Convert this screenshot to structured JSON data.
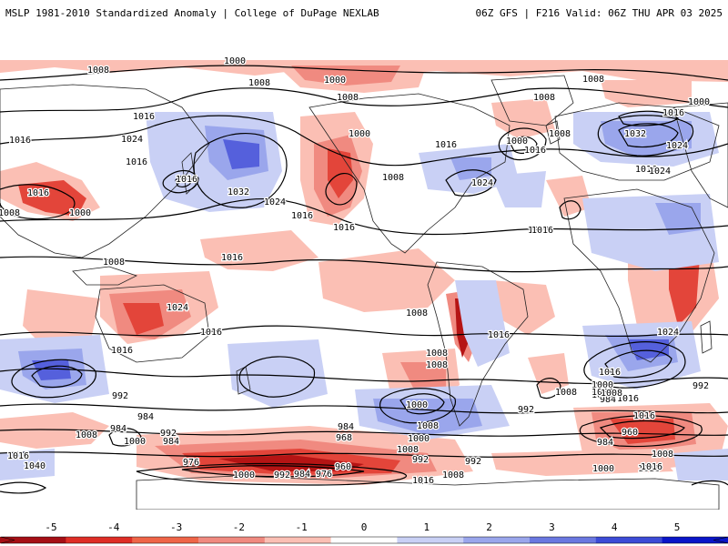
{
  "header": {
    "title_left": "MSLP 1981-2010 Standardized Anomaly | College of DuPage NEXLAB",
    "title_right": "06Z GFS | F216 Valid: 06Z THU APR 03 2025"
  },
  "legend": {
    "ticks": [
      "-5",
      "-4",
      "-3",
      "-2",
      "-1",
      "0",
      "1",
      "2",
      "3",
      "4",
      "5"
    ],
    "colors": [
      "#a50f15",
      "#de2d26",
      "#ef6548",
      "#f08a80",
      "#fbbfb4",
      "#ffffff",
      "#c9d0f5",
      "#9aa6ec",
      "#6a78e0",
      "#3c4bd6",
      "#0a15c8"
    ]
  },
  "map": {
    "colors": {
      "neg1": "#fbbfb4",
      "neg2": "#f08a80",
      "neg3": "#e3453a",
      "neg4": "#b51414",
      "pos1": "#c9d0f5",
      "pos2": "#9aa6ec",
      "pos3": "#5560dc",
      "land_outline": "#222222",
      "isobar": "#000000"
    },
    "isobar_labels": [
      "1000",
      "1000",
      "1008",
      "1008",
      "1008",
      "1008",
      "1008",
      "1000",
      "1016",
      "1016",
      "1024",
      "1016",
      "1032",
      "1024",
      "1016",
      "1016",
      "1016",
      "1000",
      "1008",
      "1016",
      "1000",
      "1016",
      "1032",
      "1024",
      "1016",
      "1008",
      "1024",
      "1016",
      "1016",
      "1000",
      "1016",
      "1008",
      "1008",
      "1016",
      "1024",
      "1016",
      "1016",
      "1008",
      "1000",
      "992",
      "984",
      "984",
      "992",
      "984",
      "1008",
      "1000",
      "1016",
      "1040",
      "976",
      "1000",
      "992",
      "984",
      "976",
      "960",
      "968",
      "984",
      "1000",
      "1008",
      "1016",
      "1008",
      "992",
      "992",
      "1008",
      "1000",
      "1016",
      "1008",
      "960",
      "984",
      "1000",
      "1016",
      "1024",
      "1016",
      "1008",
      "1016",
      "992",
      "1008",
      "1000",
      "984",
      "992",
      "1008",
      "1016",
      "1016",
      "1024",
      "1008",
      "1016",
      "1008"
    ]
  }
}
